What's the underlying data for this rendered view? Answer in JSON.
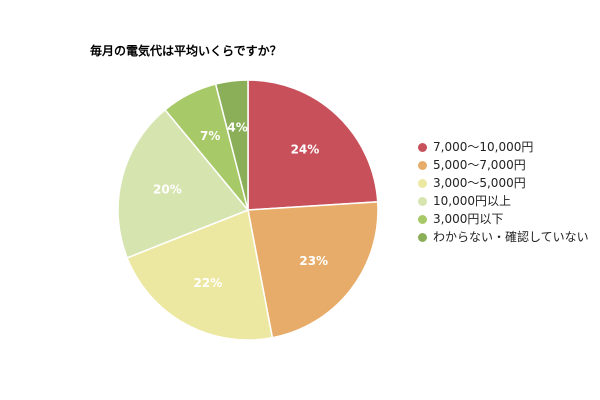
{
  "chart_data": {
    "type": "pie",
    "title": "毎月の電気代は平均いくらですか？",
    "categories": [
      "7,000〜10,000円",
      "5,000〜7,000円",
      "3,000〜5,000円",
      "10,000円以上",
      "3,000円以下",
      "わからない・確認していない"
    ],
    "values": [
      24,
      23,
      22,
      20,
      7,
      4
    ],
    "labels": [
      "24%",
      "23%",
      "22%",
      "20%",
      "7%",
      "4%"
    ],
    "colors": [
      "#c8505b",
      "#e7ac69",
      "#ede8a1",
      "#d6e4b0",
      "#a7c967",
      "#8aaf58"
    ],
    "legend_position": "right",
    "start": "12 o'clock, clockwise"
  }
}
